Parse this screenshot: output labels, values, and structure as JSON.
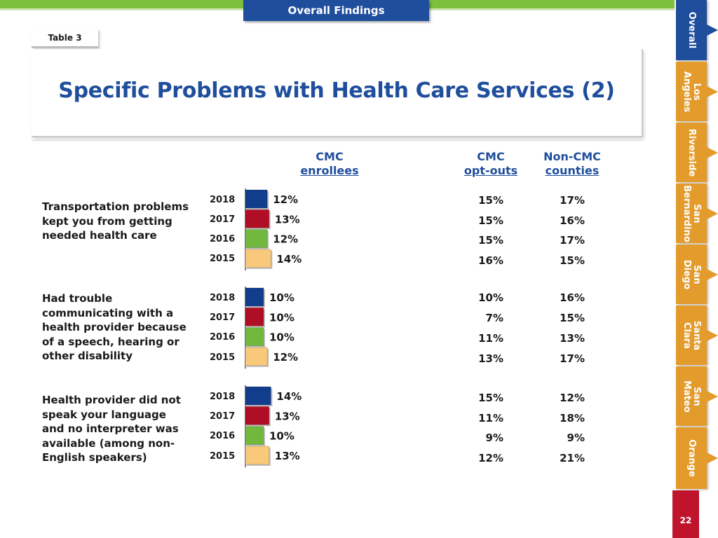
{
  "header": {
    "section_tab": "Overall Findings",
    "table_tab": "Table 3"
  },
  "title": "Specific Problems with Health Care Services (2)",
  "columns": {
    "cmc_enrollees": {
      "line1": "CMC",
      "line2": "enrollees"
    },
    "cmc_optouts": {
      "line1": "CMC",
      "line2": "opt-outs"
    },
    "noncmc": {
      "line1": "Non-CMC",
      "line2": "counties"
    }
  },
  "colors": {
    "2018": "#123d8c",
    "2017": "#b00e25",
    "2016": "#72b83f",
    "2015": "#f8c97a",
    "title": "#1f4e9c",
    "nav": "#e39b2c"
  },
  "chart_data": {
    "type": "bar",
    "orientation": "horizontal",
    "series_years": [
      "2018",
      "2017",
      "2016",
      "2015"
    ],
    "groups": [
      {
        "label": "Transportation problems kept you from getting needed health care",
        "years": [
          "2018",
          "2017",
          "2016",
          "2015"
        ],
        "cmc_enrollees": [
          12,
          13,
          12,
          14
        ],
        "cmc_enrollees_labels": [
          "12%",
          "13%",
          "12%",
          "14%"
        ],
        "cmc_optouts_labels": [
          "15%",
          "15%",
          "15%",
          "16%"
        ],
        "noncmc_labels": [
          "17%",
          "16%",
          "17%",
          "15%"
        ]
      },
      {
        "label": "Had trouble communicating with a health provider because of a speech, hearing or other disability",
        "years": [
          "2018",
          "2017",
          "2016",
          "2015"
        ],
        "cmc_enrollees": [
          10,
          10,
          10,
          12
        ],
        "cmc_enrollees_labels": [
          "10%",
          "10%",
          "10%",
          "12%"
        ],
        "cmc_optouts_labels": [
          "10%",
          "7%",
          "11%",
          "13%"
        ],
        "noncmc_labels": [
          "16%",
          "15%",
          "13%",
          "17%"
        ]
      },
      {
        "label": "Health provider did not speak your language and no interpreter was available (among non-English speakers)",
        "years": [
          "2018",
          "2017",
          "2016",
          "2015"
        ],
        "cmc_enrollees": [
          14,
          13,
          10,
          13
        ],
        "cmc_enrollees_labels": [
          "14%",
          "13%",
          "10%",
          "13%"
        ],
        "cmc_optouts_labels": [
          "15%",
          "11%",
          "9%",
          "12%"
        ],
        "noncmc_labels": [
          "12%",
          "18%",
          "9%",
          "21%"
        ]
      }
    ]
  },
  "sidebar": {
    "items": [
      {
        "line1": "Overall",
        "line2": ""
      },
      {
        "line1": "Los",
        "line2": "Angeles"
      },
      {
        "line1": "Riverside",
        "line2": ""
      },
      {
        "line1": "San",
        "line2": "Bernardino"
      },
      {
        "line1": "San",
        "line2": "Diego"
      },
      {
        "line1": "Santa",
        "line2": "Clara"
      },
      {
        "line1": "San",
        "line2": "Mateo"
      },
      {
        "line1": "Orange",
        "line2": ""
      }
    ],
    "page_number": "22"
  }
}
